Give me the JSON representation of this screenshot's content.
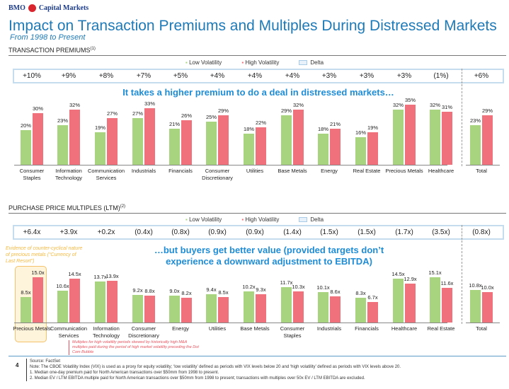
{
  "header": {
    "brand": "BMO",
    "brand_suffix": "Capital Markets",
    "title": "Impact on Transaction Premiums and Multiples During Distressed Markets",
    "subtitle": "From 1998 to Present"
  },
  "legend": {
    "low": "Low Volatility",
    "high": "High Volatility",
    "delta": "Delta"
  },
  "colors": {
    "low": "#a9d47f",
    "high": "#f0717c",
    "title": "#1f7ab8",
    "delta_border": "#c5dcef"
  },
  "chart_data": [
    {
      "type": "bar",
      "title": "TRANSACTION PREMIUMS",
      "footnote_ref": "(1)",
      "categories": [
        "Consumer Staples",
        "Information Technology",
        "Communication Services",
        "Industrials",
        "Financials",
        "Consumer Discretionary",
        "Utilities",
        "Base Metals",
        "Energy",
        "Real Estate",
        "Precious Metals",
        "Healthcare",
        "Total"
      ],
      "series": [
        {
          "name": "Low Volatility",
          "values": [
            20,
            23,
            19,
            27,
            21,
            25,
            18,
            29,
            18,
            16,
            32,
            32,
            23
          ],
          "labels": [
            "20%",
            "23%",
            "19%",
            "27%",
            "21%",
            "25%",
            "18%",
            "29%",
            "18%",
            "16%",
            "32%",
            "32%",
            "23%"
          ]
        },
        {
          "name": "High Volatility",
          "values": [
            30,
            32,
            27,
            33,
            26,
            29,
            22,
            32,
            21,
            19,
            35,
            31,
            29
          ],
          "labels": [
            "30%",
            "32%",
            "27%",
            "33%",
            "26%",
            "29%",
            "22%",
            "32%",
            "21%",
            "19%",
            "35%",
            "31%",
            "29%"
          ]
        }
      ],
      "deltas": [
        "+10%",
        "+9%",
        "+8%",
        "+7%",
        "+5%",
        "+4%",
        "+4%",
        "+4%",
        "+3%",
        "+3%",
        "+3%",
        "(1%)",
        "+6%"
      ],
      "callout": "It takes a higher premium to do a deal in distressed markets…",
      "ylim": [
        0,
        40
      ]
    },
    {
      "type": "bar",
      "title": "PURCHASE PRICE MULTIPLES (LTM)",
      "footnote_ref": "(2)",
      "categories": [
        "Precious Metals",
        "Communication Services",
        "Information Technology",
        "Consumer Discretionary",
        "Energy",
        "Utilities",
        "Base Metals",
        "Consumer Staples",
        "Industrials",
        "Financials",
        "Healthcare",
        "Real Estate",
        "Total"
      ],
      "series": [
        {
          "name": "Low Volatility",
          "values": [
            8.5,
            10.6,
            13.7,
            9.2,
            9.0,
            9.4,
            10.2,
            11.7,
            10.1,
            8.3,
            14.5,
            15.1,
            10.8
          ],
          "labels": [
            "8.5x",
            "10.6x",
            "13.7x",
            "9.2x",
            "9.0x",
            "9.4x",
            "10.2x",
            "11.7x",
            "10.1x",
            "8.3x",
            "14.5x",
            "15.1x",
            "10.8x"
          ]
        },
        {
          "name": "High Volatility",
          "values": [
            15.0,
            14.5,
            13.9,
            8.8,
            8.2,
            8.5,
            9.3,
            10.3,
            8.6,
            6.7,
            12.9,
            11.6,
            10.0
          ],
          "labels": [
            "15.0x",
            "14.5x",
            "13.9x",
            "8.8x",
            "8.2x",
            "8.5x",
            "9.3x",
            "10.3x",
            "8.6x",
            "6.7x",
            "12.9x",
            "11.6x",
            "10.0x"
          ]
        }
      ],
      "deltas": [
        "+6.4x",
        "+3.9x",
        "+0.2x",
        "(0.4x)",
        "(0.8x)",
        "(0.9x)",
        "(0.9x)",
        "(1.4x)",
        "(1.5x)",
        "(1.5x)",
        "(1.7x)",
        "(3.5x)",
        "(0.8x)"
      ],
      "callout": "…but buyers get better value (provided targets don’t experience a downward adjustment to EBITDA)",
      "ylim": [
        0,
        18
      ]
    }
  ],
  "annotations": {
    "evidence": "Evidence of counter-cyclical nature of precious metals (“Currency of Last Resort”)",
    "note": "Multiples for high volatility periods skewed by historically high M&A multiples paid during the period of high market volatility preceding the Dot Com Bubble"
  },
  "footer": {
    "page": "4",
    "source": "Source: FactSet",
    "note": "Note: The CBOE Volatility Index (VIX) is used as a proxy for equity volatility; ‘low volatility’ defined as periods with VIX levels below 20 and ‘high volatility’ defined as periods with VIX levels above 20.",
    "fn1": "1.     Median one-day premium paid for North American transactions over $50mm from 1998 to present.",
    "fn2": "2.     Median EV / LTM EBITDA multiple paid for North American transactions over $50mm from 1998 to present; transactions with multiples over 50x EV / LTM EBITDA are excluded."
  }
}
